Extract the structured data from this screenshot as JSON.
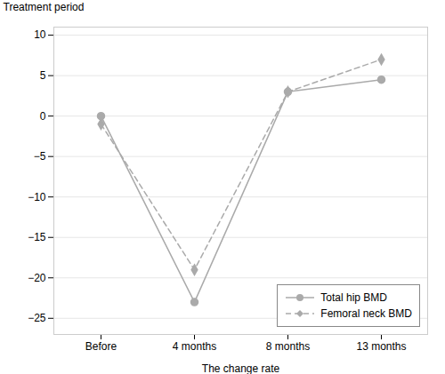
{
  "chart_data": {
    "type": "line",
    "categories": [
      "Before",
      "4 months",
      "8 months",
      "13 months"
    ],
    "series": [
      {
        "name": "Total hip BMD",
        "color": "#aaaaaa",
        "values": [
          0,
          -23,
          3,
          4.5
        ],
        "line_style": "solid",
        "marker": "circle"
      },
      {
        "name": "Femoral neck BMD",
        "color": "#aaaaaa",
        "values": [
          -1,
          -19,
          3,
          7
        ],
        "line_style": "dashed",
        "marker": "diamond"
      }
    ],
    "xlabel": "The change rate",
    "ylabel": "Treatment period",
    "ylim": [
      -27,
      11
    ],
    "yticks": [
      {
        "value": -25,
        "label": "−25"
      },
      {
        "value": -20,
        "label": "−20"
      },
      {
        "value": -15,
        "label": "−15"
      },
      {
        "value": -10,
        "label": "−10"
      },
      {
        "value": -5,
        "label": "−5"
      },
      0,
      5,
      10
    ],
    "grid": true,
    "legend": "lower right"
  }
}
